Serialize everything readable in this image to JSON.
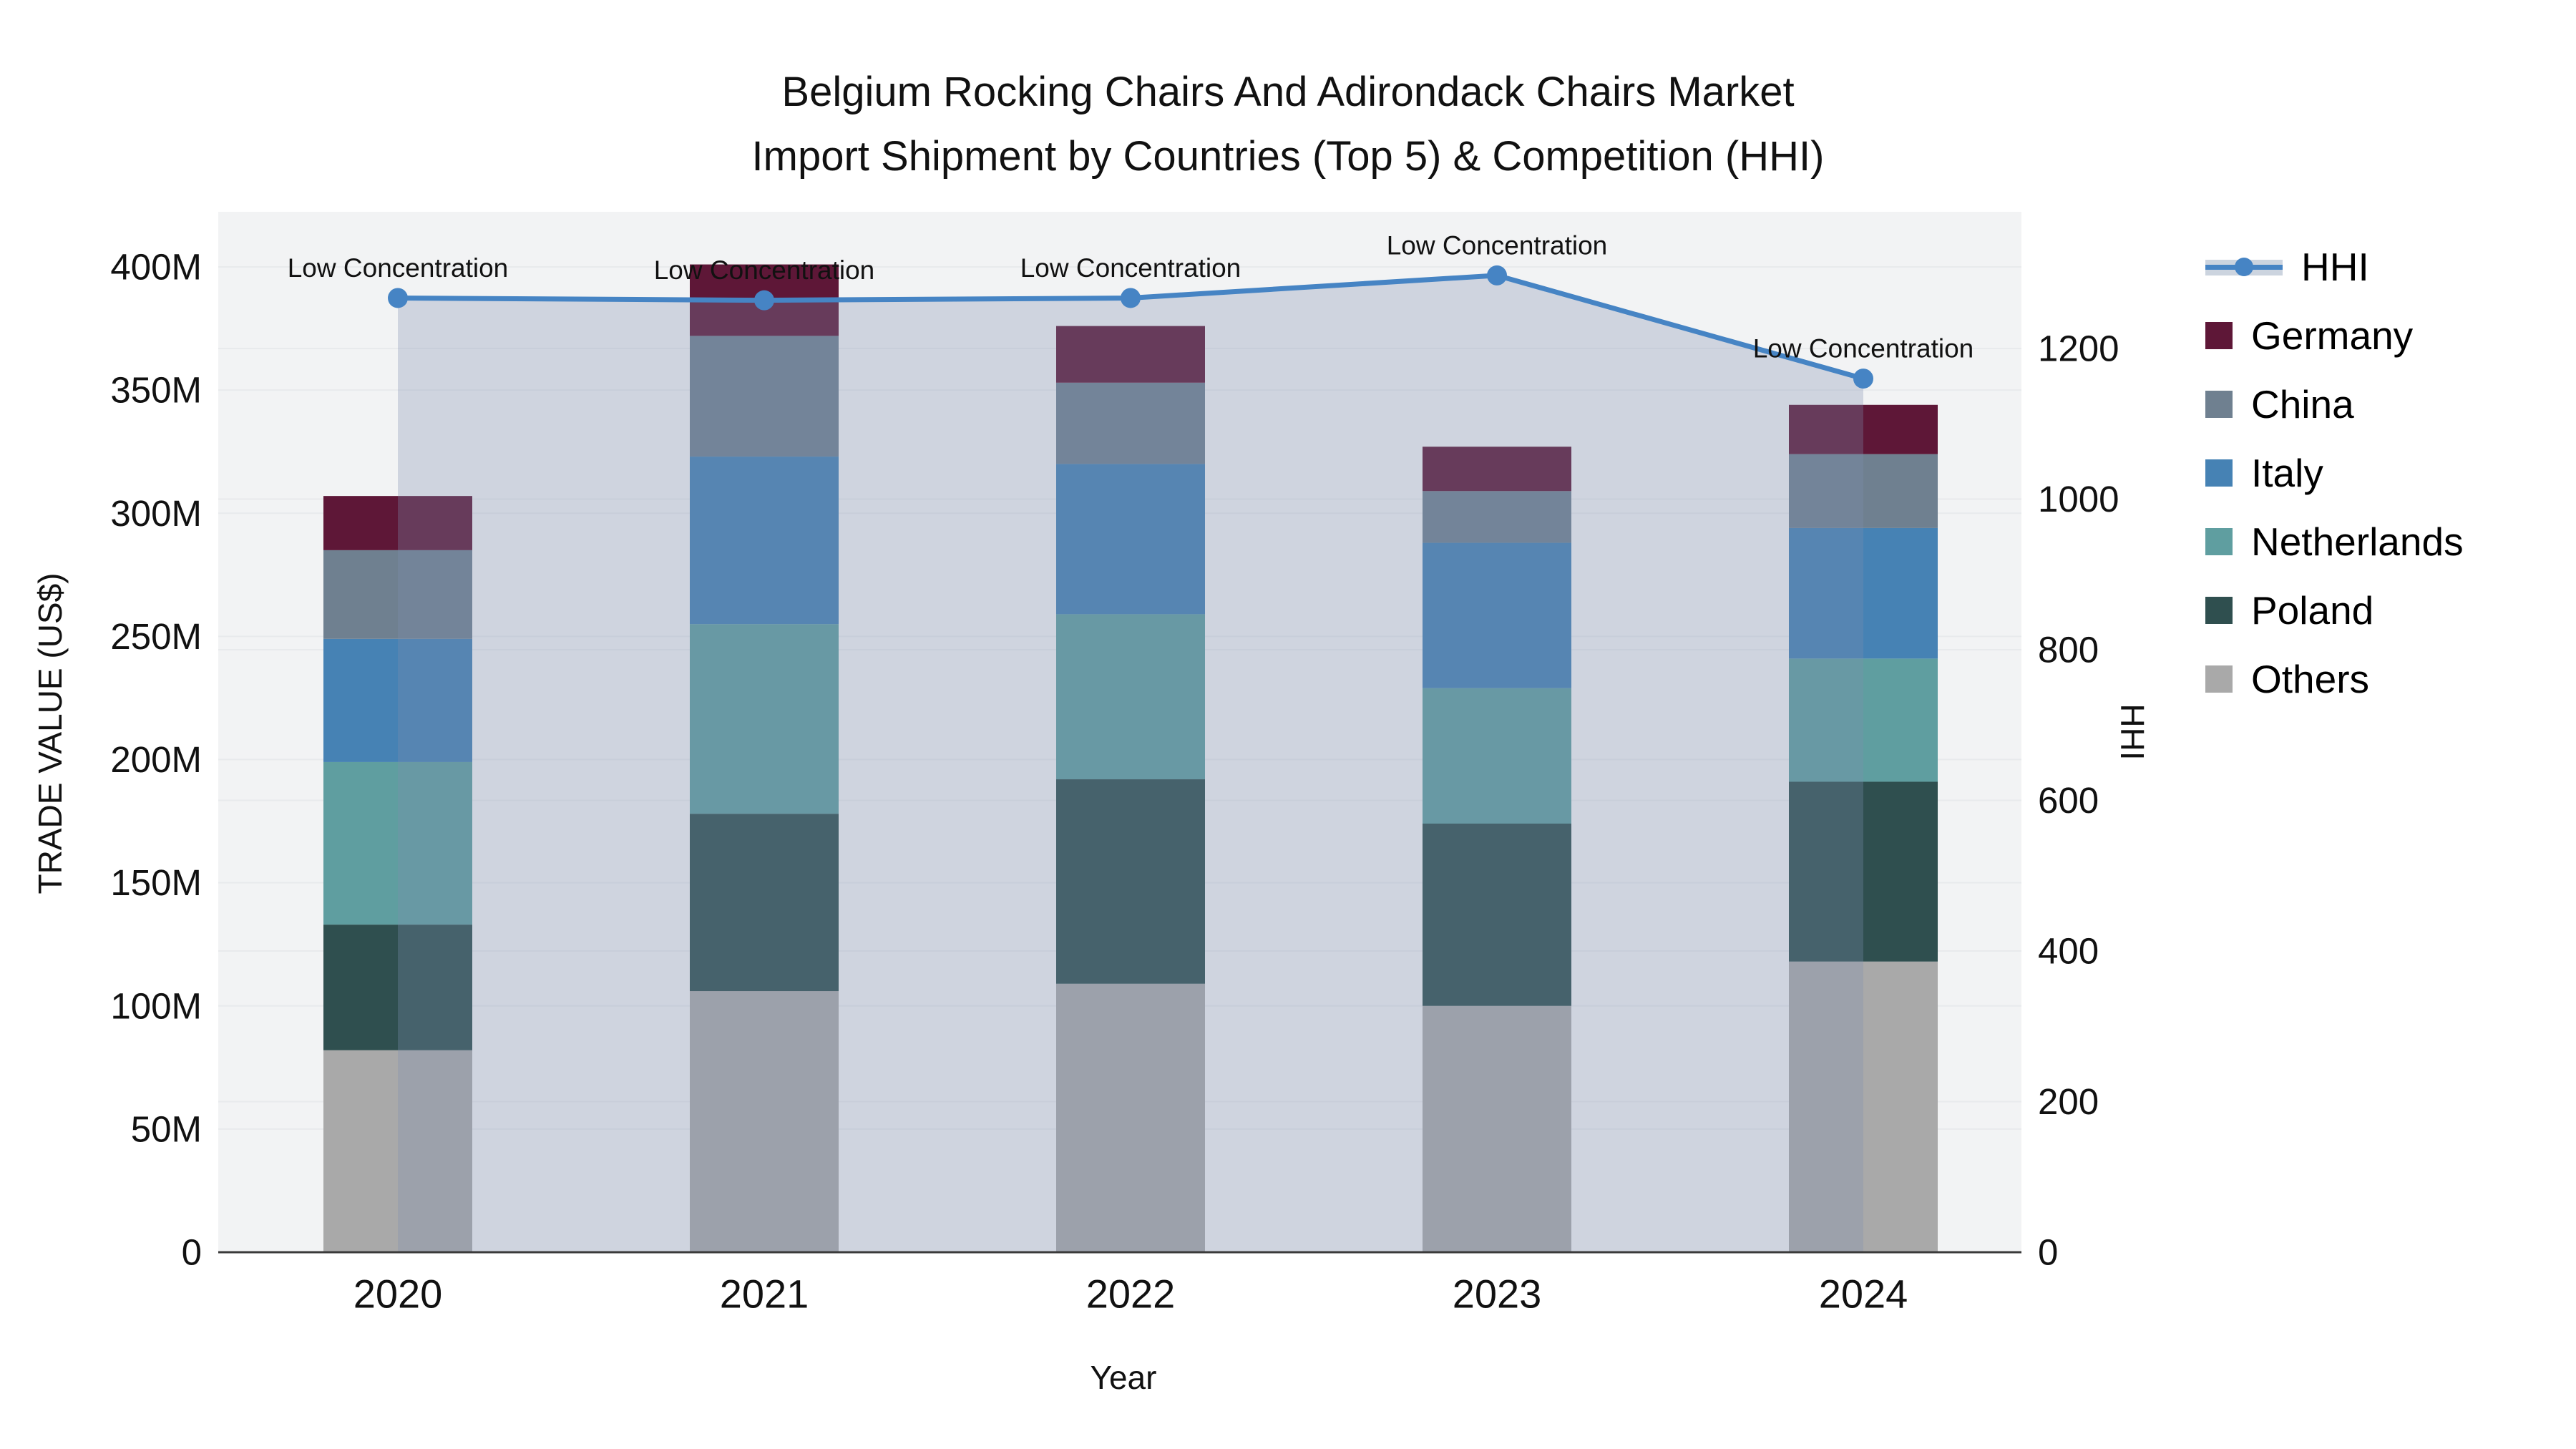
{
  "title": {
    "line1": "Belgium Rocking Chairs And Adirondack Chairs Market",
    "line2": "Import Shipment by Countries (Top 5) & Competition (HHI)"
  },
  "axes": {
    "y_left": {
      "title": "TRADE VALUE (US$)",
      "tick_step": 50,
      "tick_suffix": "M",
      "range": [
        0,
        400
      ]
    },
    "y_right": {
      "title": "HHI",
      "tick_step": 200,
      "range": [
        0,
        1200
      ]
    },
    "x": {
      "title": "Year"
    }
  },
  "annotation_text": "Low Concentration",
  "colors": {
    "plot_background": "#f2f3f4",
    "gridline": "#e8eaec",
    "axis_line": "#3a3a3a",
    "area_fill": "rgba(125,144,176,0.30)",
    "legend_band": "#ccd4df",
    "hhi_line": "#4684c4"
  },
  "chart_data": {
    "type": "bar",
    "subtype": "stacked-bars-with-overlaid-line",
    "title": "Belgium Rocking Chairs And Adirondack Chairs Market — Import Shipment by Countries (Top 5) & Competition (HHI)",
    "xlabel": "Year",
    "ylabel_left": "TRADE VALUE (US$)",
    "ylabel_right": "HHI",
    "units": "millions of US$",
    "categories": [
      "2020",
      "2021",
      "2022",
      "2023",
      "2024"
    ],
    "ylim_left": [
      0,
      400
    ],
    "ylim_right": [
      0,
      1200
    ],
    "grid": true,
    "legend_position": "right",
    "series": [
      {
        "name": "Others",
        "color": "#a9a9a9",
        "values": [
          82,
          106,
          109,
          100,
          118
        ]
      },
      {
        "name": "Poland",
        "color": "#2f4f4f",
        "values": [
          51,
          72,
          83,
          74,
          73
        ]
      },
      {
        "name": "Netherlands",
        "color": "#5f9ea0",
        "values": [
          66,
          77,
          67,
          55,
          50
        ]
      },
      {
        "name": "Italy",
        "color": "#4682b4",
        "values": [
          50,
          68,
          61,
          59,
          53
        ]
      },
      {
        "name": "China",
        "color": "#6f8090",
        "values": [
          36,
          49,
          33,
          21,
          30
        ]
      },
      {
        "name": "Germany",
        "color": "#5e1737",
        "values": [
          22,
          29,
          23,
          18,
          20
        ]
      }
    ],
    "stack_totals": [
      307,
      401,
      376,
      327,
      344
    ],
    "line": {
      "name": "HHI",
      "axis": "right",
      "color": "#4684c4",
      "values": [
        1267,
        1264,
        1267,
        1297,
        1160
      ],
      "point_labels": [
        "Low Concentration",
        "Low Concentration",
        "Low Concentration",
        "Low Concentration",
        "Low Concentration"
      ],
      "area_under_line": true
    },
    "legend_order": [
      "HHI",
      "Germany",
      "China",
      "Italy",
      "Netherlands",
      "Poland",
      "Others"
    ]
  }
}
